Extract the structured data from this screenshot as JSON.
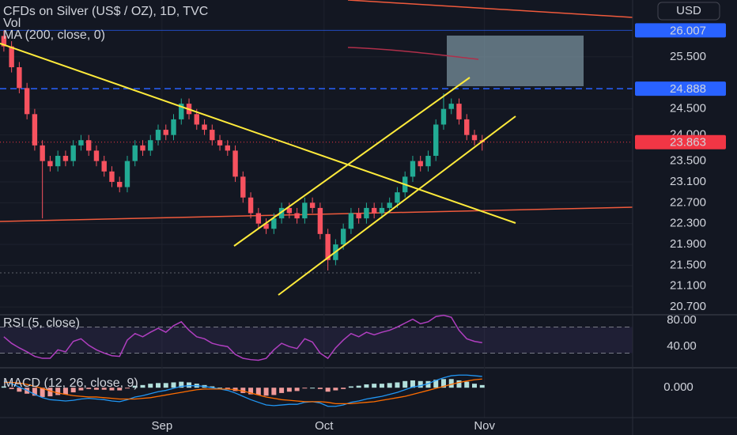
{
  "chart_data": {
    "type": "candlestick",
    "title": "CFDs on Silver (US$ / OZ), 1D, TVC",
    "indicator_labels": [
      "Vol",
      "MA (200, close, 0)"
    ],
    "currency": "USD",
    "open": [
      25.9,
      25.7,
      25.3,
      24.9,
      24.4,
      23.8,
      23.5,
      23.4,
      23.6,
      23.5,
      23.8,
      23.9,
      23.7,
      23.5,
      23.3,
      23.1,
      23.0,
      23.5,
      23.8,
      23.7,
      23.9,
      24.1,
      24.0,
      24.3,
      24.6,
      24.4,
      24.2,
      24.1,
      23.9,
      23.8,
      23.7,
      23.2,
      22.8,
      22.5,
      22.3,
      22.2,
      22.4,
      22.6,
      22.5,
      22.4,
      22.7,
      22.6,
      22.1,
      21.6,
      21.9,
      22.2,
      22.5,
      22.4,
      22.6,
      22.5,
      22.6,
      22.7,
      22.9,
      23.2,
      23.5,
      23.4,
      23.6,
      24.2,
      24.5,
      24.6,
      24.3,
      24.0,
      23.9
    ],
    "high": [
      26.0,
      25.8,
      25.4,
      25.0,
      24.5,
      23.9,
      23.6,
      23.7,
      23.7,
      23.9,
      24.0,
      24.0,
      23.8,
      23.6,
      23.4,
      23.2,
      23.6,
      23.9,
      23.9,
      24.0,
      24.2,
      24.2,
      24.4,
      24.7,
      24.7,
      24.5,
      24.3,
      24.2,
      24.0,
      23.9,
      23.8,
      23.3,
      22.9,
      22.6,
      22.4,
      22.5,
      22.7,
      22.7,
      22.6,
      22.8,
      22.8,
      22.7,
      22.2,
      22.0,
      22.3,
      22.6,
      22.6,
      22.7,
      22.7,
      22.7,
      22.8,
      23.0,
      23.3,
      23.6,
      23.6,
      23.7,
      24.3,
      24.8,
      24.7,
      24.7,
      24.4,
      24.1,
      24.0
    ],
    "low": [
      25.6,
      25.2,
      24.8,
      24.3,
      23.7,
      22.4,
      23.3,
      23.3,
      23.4,
      23.4,
      23.7,
      23.6,
      23.4,
      23.2,
      23.0,
      22.9,
      22.9,
      23.4,
      23.6,
      23.6,
      23.8,
      23.9,
      23.9,
      24.2,
      24.3,
      24.1,
      24.0,
      23.8,
      23.7,
      23.6,
      23.1,
      22.7,
      22.4,
      22.2,
      22.1,
      22.1,
      22.3,
      22.4,
      22.3,
      22.3,
      22.5,
      22.0,
      21.4,
      21.5,
      21.8,
      22.1,
      22.3,
      22.3,
      22.4,
      22.4,
      22.5,
      22.6,
      22.8,
      23.1,
      23.3,
      23.3,
      23.5,
      24.1,
      24.4,
      24.2,
      23.9,
      23.8,
      23.7
    ],
    "close": [
      25.7,
      25.3,
      24.9,
      24.4,
      23.8,
      23.5,
      23.4,
      23.6,
      23.5,
      23.8,
      23.9,
      23.7,
      23.5,
      23.3,
      23.1,
      23.0,
      23.5,
      23.8,
      23.7,
      23.9,
      24.1,
      24.0,
      24.3,
      24.6,
      24.4,
      24.2,
      24.1,
      23.9,
      23.8,
      23.7,
      23.2,
      22.8,
      22.5,
      22.3,
      22.2,
      22.4,
      22.6,
      22.5,
      22.4,
      22.7,
      22.6,
      22.1,
      21.6,
      21.9,
      22.2,
      22.5,
      22.4,
      22.6,
      22.5,
      22.6,
      22.7,
      22.9,
      23.2,
      23.5,
      23.4,
      23.6,
      24.2,
      24.5,
      24.6,
      24.3,
      24.0,
      23.9,
      23.86
    ],
    "up_color": "#22ab94",
    "down_color": "#f7525f",
    "xlim": [
      -0.5,
      81.5
    ],
    "xticks": [
      {
        "value": 20.5,
        "label": "Sep"
      },
      {
        "value": 41.5,
        "label": "Oct"
      },
      {
        "value": 62.3,
        "label": "Nov"
      }
    ],
    "ylim": [
      20.55,
      26.59
    ],
    "yticks": [
      {
        "value": 20.7,
        "label": "20.700"
      },
      {
        "value": 21.1,
        "label": "21.100"
      },
      {
        "value": 21.5,
        "label": "21.500"
      },
      {
        "value": 21.9,
        "label": "21.900"
      },
      {
        "value": 22.3,
        "label": "22.300"
      },
      {
        "value": 22.7,
        "label": "22.700"
      },
      {
        "value": 23.1,
        "label": "23.100"
      },
      {
        "value": 23.5,
        "label": "23.500"
      },
      {
        "value": 24.0,
        "label": "24.000"
      },
      {
        "value": 24.5,
        "label": "24.500"
      },
      {
        "value": 25.5,
        "label": "25.500"
      }
    ],
    "price_labels": [
      {
        "value": 26.007,
        "label": "26.007",
        "color": "#2962ff"
      },
      {
        "value": 24.888,
        "label": "24.888",
        "color": "#2962ff"
      },
      {
        "value": 23.863,
        "label": "23.863",
        "color": "#f23645"
      }
    ],
    "rsi": {
      "title": "RSI (5, close)",
      "color": "#b03fc0",
      "values": [
        55,
        45,
        38,
        32,
        25,
        22,
        22,
        35,
        32,
        48,
        52,
        42,
        35,
        30,
        26,
        25,
        50,
        60,
        55,
        62,
        68,
        62,
        72,
        78,
        65,
        55,
        52,
        45,
        42,
        40,
        28,
        22,
        20,
        19,
        22,
        35,
        45,
        40,
        37,
        52,
        47,
        30,
        22,
        38,
        50,
        60,
        55,
        62,
        58,
        62,
        65,
        70,
        76,
        82,
        75,
        78,
        86,
        88,
        85,
        65,
        52,
        48,
        46
      ],
      "ylim": [
        7.5,
        88.75
      ],
      "bands": [
        30,
        70
      ],
      "yticks": [
        {
          "value": 80,
          "label": "80.00"
        },
        {
          "value": 40,
          "label": "40.00"
        }
      ]
    },
    "macd": {
      "title": "MACD (12, 26, close, 9)",
      "series": [
        {
          "color": "#2196f3",
          "values": [
            0.1,
            0.06,
            0.01,
            -0.04,
            -0.1,
            -0.15,
            -0.18,
            -0.19,
            -0.2,
            -0.19,
            -0.17,
            -0.16,
            -0.17,
            -0.18,
            -0.2,
            -0.21,
            -0.18,
            -0.14,
            -0.12,
            -0.09,
            -0.06,
            -0.04,
            -0.01,
            0.02,
            0.03,
            0.03,
            0.02,
            0.0,
            -0.02,
            -0.04,
            -0.08,
            -0.13,
            -0.18,
            -0.22,
            -0.26,
            -0.27,
            -0.26,
            -0.25,
            -0.25,
            -0.22,
            -0.21,
            -0.23,
            -0.28,
            -0.28,
            -0.26,
            -0.22,
            -0.2,
            -0.17,
            -0.15,
            -0.13,
            -0.1,
            -0.07,
            -0.03,
            0.01,
            0.03,
            0.06,
            0.11,
            0.15,
            0.18,
            0.19,
            0.19,
            0.18,
            0.17
          ]
        },
        {
          "color": "#ff6d00",
          "values": [
            0.08,
            0.08,
            0.07,
            0.05,
            0.02,
            -0.01,
            -0.05,
            -0.08,
            -0.1,
            -0.12,
            -0.13,
            -0.14,
            -0.14,
            -0.15,
            -0.16,
            -0.17,
            -0.17,
            -0.17,
            -0.16,
            -0.15,
            -0.13,
            -0.11,
            -0.09,
            -0.07,
            -0.05,
            -0.03,
            -0.02,
            -0.02,
            -0.02,
            -0.02,
            -0.03,
            -0.05,
            -0.08,
            -0.11,
            -0.14,
            -0.16,
            -0.18,
            -0.19,
            -0.2,
            -0.21,
            -0.21,
            -0.21,
            -0.22,
            -0.24,
            -0.24,
            -0.24,
            -0.23,
            -0.22,
            -0.21,
            -0.19,
            -0.17,
            -0.15,
            -0.13,
            -0.1,
            -0.07,
            -0.04,
            -0.01,
            0.02,
            0.05,
            0.08,
            0.1,
            0.12,
            0.13
          ]
        }
      ],
      "histogram": [
        0.02,
        -0.02,
        -0.06,
        -0.09,
        -0.12,
        -0.14,
        -0.13,
        -0.11,
        -0.1,
        -0.07,
        -0.04,
        -0.02,
        -0.03,
        -0.03,
        -0.04,
        -0.04,
        -0.01,
        0.03,
        0.04,
        0.06,
        0.07,
        0.07,
        0.08,
        0.09,
        0.08,
        0.06,
        0.04,
        0.02,
        0,
        -0.02,
        -0.05,
        -0.08,
        -0.1,
        -0.11,
        -0.12,
        -0.11,
        -0.08,
        -0.06,
        -0.05,
        -0.01,
        0,
        -0.02,
        -0.06,
        -0.04,
        -0.02,
        0.02,
        0.03,
        0.05,
        0.06,
        0.06,
        0.07,
        0.08,
        0.1,
        0.11,
        0.1,
        0.1,
        0.12,
        0.13,
        0.13,
        0.11,
        0.09,
        0.06,
        0.04
      ],
      "hist_colors": [
        "#b2dfdb",
        "#ef9a9a"
      ],
      "ylim": [
        -0.45,
        0.3
      ],
      "yticks": [
        {
          "value": 0,
          "label": "0.000"
        }
      ]
    }
  }
}
